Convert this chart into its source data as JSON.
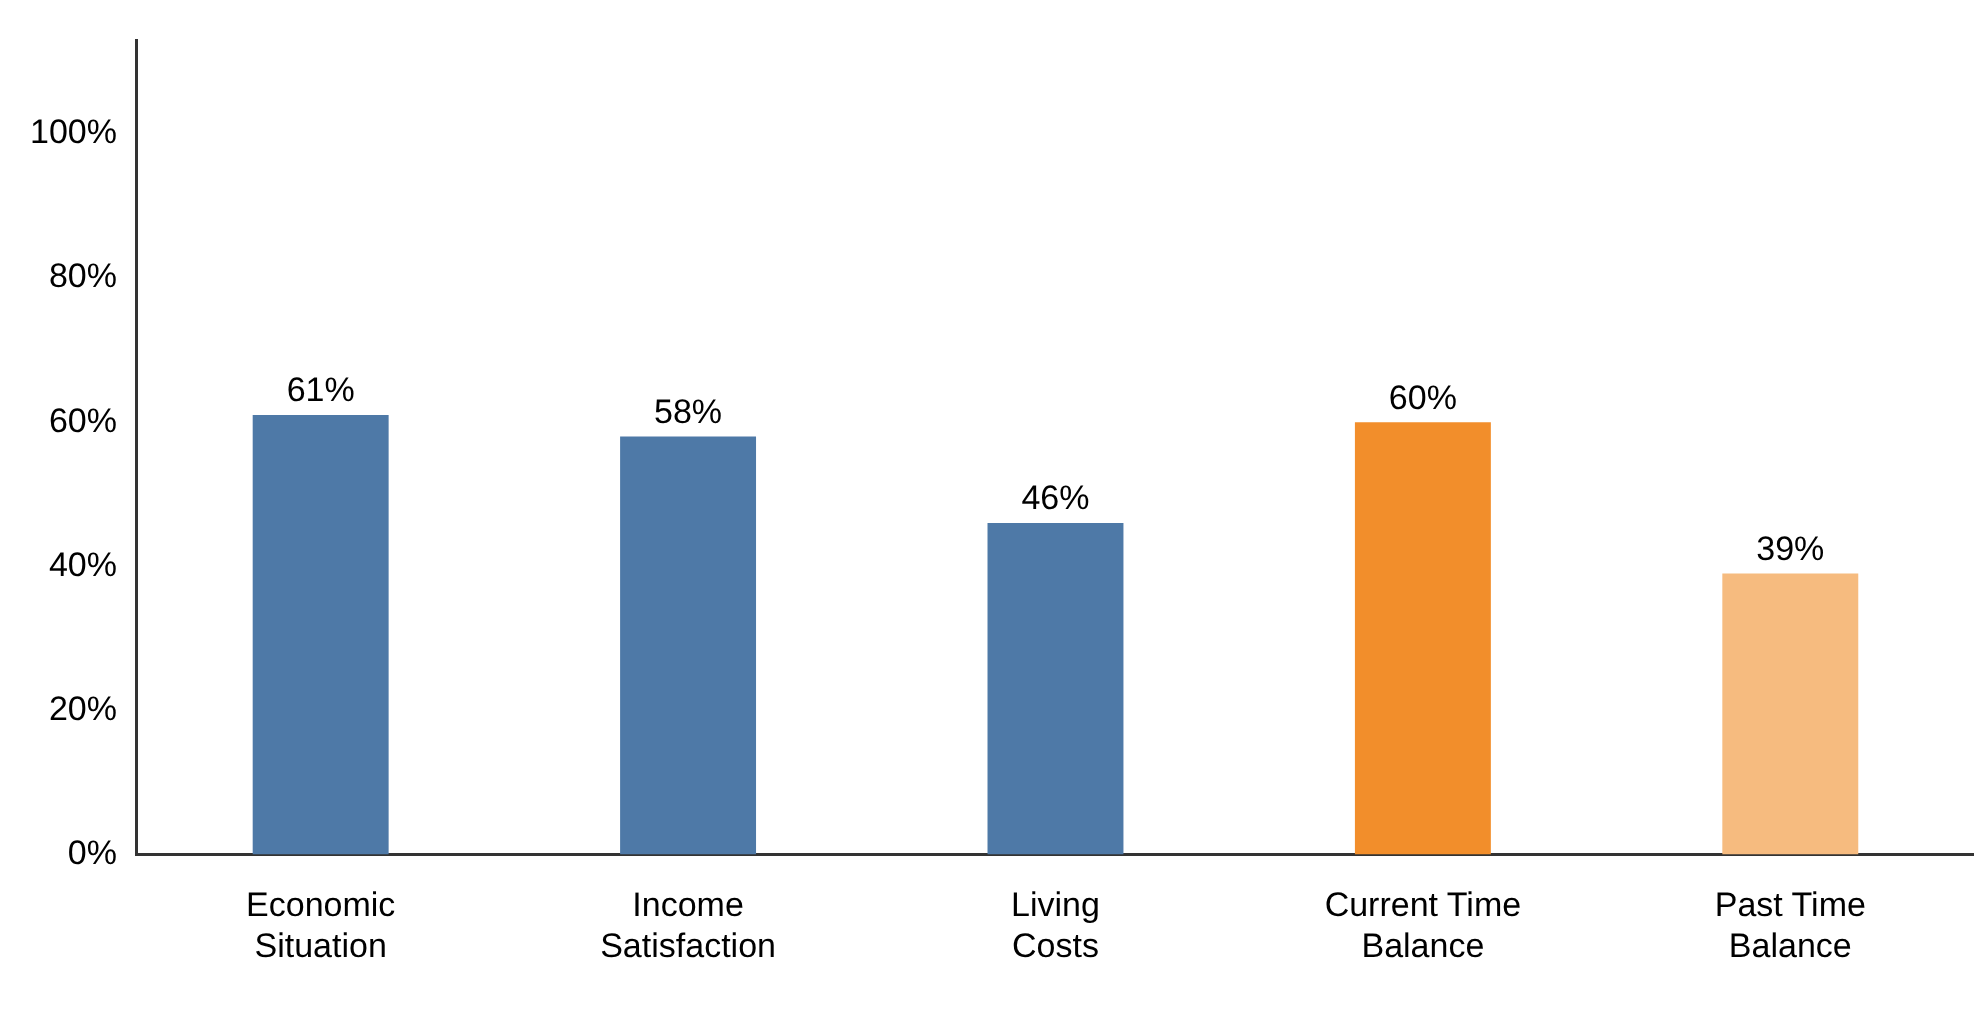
{
  "chart_data": {
    "type": "bar",
    "categories": [
      "Economic Situation",
      "Income Satisfaction",
      "Living Costs",
      "Current Time Balance",
      "Past Time Balance"
    ],
    "values": [
      61,
      58,
      46,
      60,
      39
    ],
    "colors": [
      "#4e79a7",
      "#4e79a7",
      "#4e79a7",
      "#f28e2b",
      "#f6bb7f"
    ],
    "value_labels": [
      "61%",
      "58%",
      "46%",
      "60%",
      "39%"
    ],
    "ylim": [
      0,
      113
    ],
    "yticks": [
      {
        "value": 0,
        "label": "0%"
      },
      {
        "value": 20,
        "label": "20%"
      },
      {
        "value": 40,
        "label": "40%"
      },
      {
        "value": 60,
        "label": "60%"
      },
      {
        "value": 80,
        "label": "80%"
      },
      {
        "value": 100,
        "label": "100%"
      }
    ],
    "grid": false,
    "legend": false
  }
}
